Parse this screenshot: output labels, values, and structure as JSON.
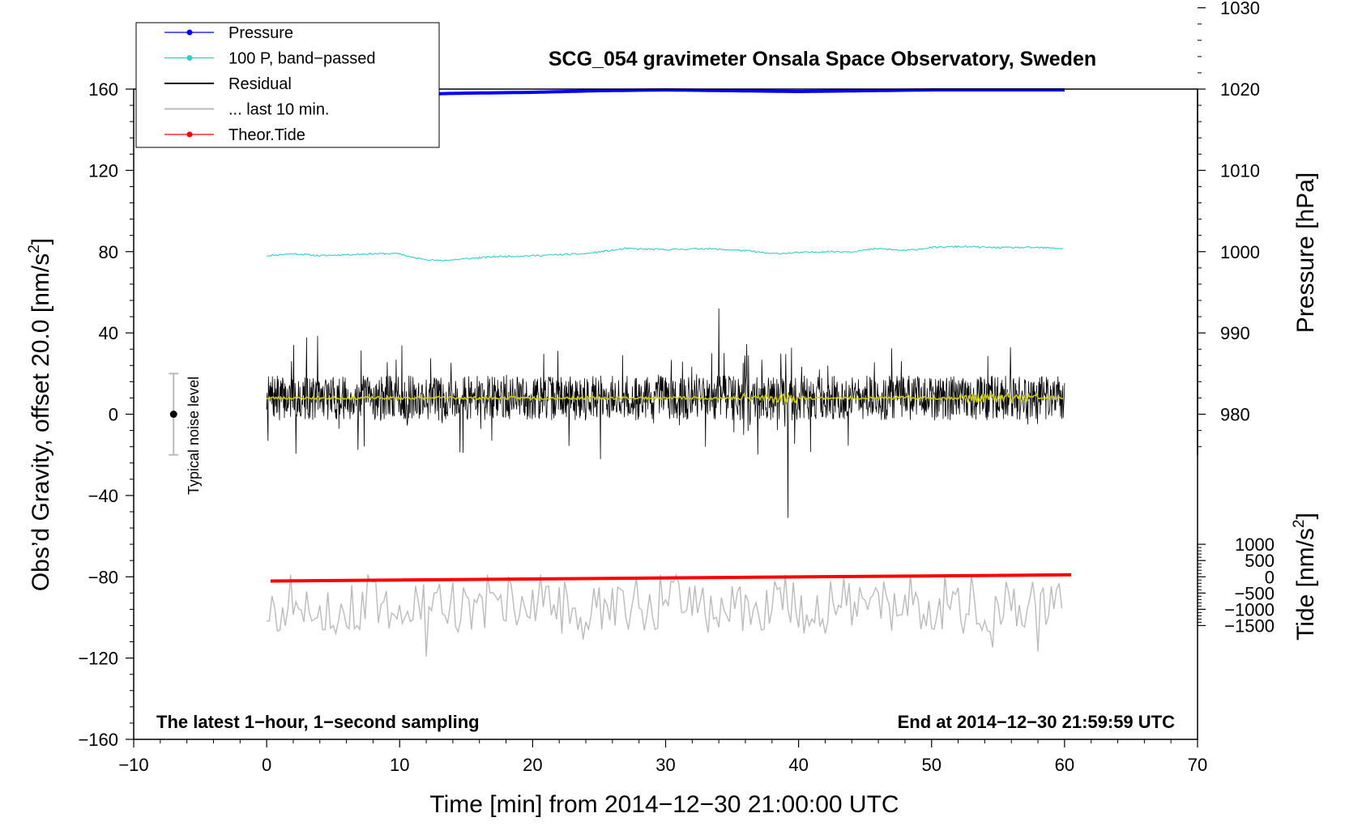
{
  "chart_data": {
    "type": "line",
    "title": "SCG_054 gravimeter Onsala Space Observatory, Sweden",
    "xlabel": "Time [min] from 2014−12−30 21:00:00 UTC",
    "ylabel": "Obs’d Gravity, offset 20.0 [nm/s",
    "ylabel_sup": "2",
    "ylabel_end": "]",
    "y2label": "Pressure [hPa]",
    "y3label": "Tide [nm/s",
    "y3label_sup": "2",
    "y3label_end": "]",
    "note_left": "The latest 1−hour, 1−second sampling",
    "note_right": "End at 2014−12−30 21:59:59 UTC",
    "noise_label": "Typical noise level",
    "noise_bar": {
      "x": -7,
      "center": 0,
      "low": -20,
      "high": 20
    },
    "xlim": [
      -10,
      70
    ],
    "ylim": [
      -160,
      160
    ],
    "xticks": [
      -10,
      0,
      10,
      20,
      30,
      40,
      50,
      60,
      70
    ],
    "xtick_labels": [
      "−10",
      "0",
      "10",
      "20",
      "30",
      "40",
      "50",
      "60",
      "70"
    ],
    "yticks": [
      -160,
      -120,
      -80,
      -40,
      0,
      40,
      80,
      120,
      160
    ],
    "ytick_labels": [
      "−160",
      "−120",
      "−80",
      "−40",
      "0",
      "40",
      "80",
      "120",
      "160"
    ],
    "pressure_axis": {
      "ticks": [
        980,
        990,
        1000,
        1010,
        1020,
        1030
      ],
      "labels": [
        "980",
        "990",
        "1000",
        "1010",
        "1020",
        "1030"
      ],
      "map": {
        "ref": 1000,
        "ref_gravity": 80,
        "gravity_per_hPa": 4.0
      }
    },
    "tide_axis": {
      "ticks": [
        -1500,
        -1000,
        -500,
        0,
        500,
        1000
      ],
      "labels": [
        "−1500",
        "−1000",
        "−500",
        "0",
        "500",
        "1000"
      ],
      "map": {
        "ref": 0,
        "ref_gravity": -80,
        "gravity_per_unit": 0.016
      }
    },
    "legend": [
      {
        "label": "Pressure",
        "color": "#0000ff",
        "marker": true
      },
      {
        "label": "100 P, band−passed",
        "color": "#33cccc",
        "marker": true
      },
      {
        "label": "Residual",
        "color": "#000000",
        "marker": false
      },
      {
        "label": "... last 10 min.",
        "color": "#bbbbbb",
        "marker": false
      },
      {
        "label": "Theor.Tide",
        "color": "#ff0000",
        "marker": true
      }
    ],
    "series": [
      {
        "name": "Pressure",
        "unit": "hPa",
        "color": "#0000ff",
        "x": [
          0,
          5,
          10,
          12,
          15,
          20,
          25,
          30,
          35,
          40,
          45,
          50,
          55,
          60
        ],
        "values": [
          1019.6,
          1019.7,
          1019.6,
          1019.4,
          1019.5,
          1019.6,
          1019.8,
          1019.9,
          1019.8,
          1019.7,
          1019.8,
          1019.9,
          1019.9,
          1019.9
        ]
      },
      {
        "name": "100 P, band−passed",
        "unit": "nm/s2",
        "color": "#33cccc",
        "x": [
          0,
          2,
          4,
          6,
          8,
          10,
          11,
          13,
          15,
          17,
          20,
          24,
          27,
          30,
          33,
          36,
          38,
          40,
          42,
          44,
          46,
          48,
          50,
          52,
          55,
          58,
          60
        ],
        "values": [
          78,
          79,
          78,
          78.5,
          79,
          79,
          77,
          75.5,
          76.5,
          77.5,
          78,
          79,
          81.5,
          81,
          81.5,
          80.5,
          79,
          79.5,
          80,
          80,
          81.5,
          80.5,
          82,
          82.5,
          82,
          82,
          81.5
        ]
      },
      {
        "name": "Residual",
        "unit": "nm/s2",
        "color": "#000000",
        "x_range": [
          0,
          60
        ],
        "mean": 8,
        "typical_range": [
          -12,
          30
        ],
        "extremes": [
          -51,
          52
        ]
      },
      {
        "name": "Residual (smoothed)",
        "unit": "nm/s2",
        "color": "#cccc00",
        "x_range": [
          0,
          60
        ],
        "mean": 8
      },
      {
        "name": "... last 10 min.",
        "unit": "nm/s2",
        "color": "#bbbbbb",
        "x_range": [
          0,
          60
        ],
        "mean": -95,
        "range": [
          -131,
          -79
        ]
      },
      {
        "name": "Theor.Tide",
        "unit": "nm/s2",
        "color": "#ff0000",
        "x": [
          0.3,
          60.5
        ],
        "values": [
          -130,
          60
        ]
      }
    ]
  }
}
